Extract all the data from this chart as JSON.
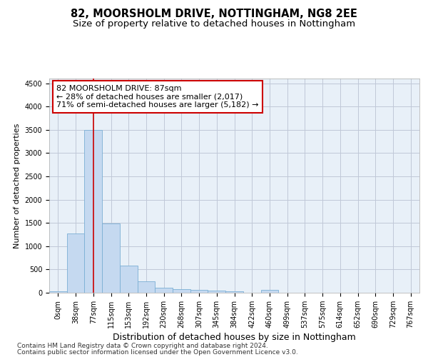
{
  "title": "82, MOORSHOLM DRIVE, NOTTINGHAM, NG8 2EE",
  "subtitle": "Size of property relative to detached houses in Nottingham",
  "xlabel": "Distribution of detached houses by size in Nottingham",
  "ylabel": "Number of detached properties",
  "bin_labels": [
    "0sqm",
    "38sqm",
    "77sqm",
    "115sqm",
    "153sqm",
    "192sqm",
    "230sqm",
    "268sqm",
    "307sqm",
    "345sqm",
    "384sqm",
    "422sqm",
    "460sqm",
    "499sqm",
    "537sqm",
    "575sqm",
    "614sqm",
    "652sqm",
    "690sqm",
    "729sqm",
    "767sqm"
  ],
  "bar_values": [
    35,
    1280,
    3500,
    1480,
    580,
    240,
    115,
    80,
    55,
    40,
    35,
    0,
    55,
    0,
    0,
    0,
    0,
    0,
    0,
    0,
    0
  ],
  "bar_color": "#c5d9f0",
  "bar_edge_color": "#7bafd4",
  "property_line_x": 2,
  "property_line_color": "#cc0000",
  "annotation_text": "82 MOORSHOLM DRIVE: 87sqm\n← 28% of detached houses are smaller (2,017)\n71% of semi-detached houses are larger (5,182) →",
  "annotation_box_color": "#ffffff",
  "annotation_box_edge_color": "#cc0000",
  "ylim": [
    0,
    4600
  ],
  "yticks": [
    0,
    500,
    1000,
    1500,
    2000,
    2500,
    3000,
    3500,
    4000,
    4500
  ],
  "background_color": "#ffffff",
  "plot_bg_color": "#e8f0f8",
  "grid_color": "#c0c8d8",
  "footer_line1": "Contains HM Land Registry data © Crown copyright and database right 2024.",
  "footer_line2": "Contains public sector information licensed under the Open Government Licence v3.0.",
  "title_fontsize": 10.5,
  "subtitle_fontsize": 9.5,
  "xlabel_fontsize": 9,
  "ylabel_fontsize": 8,
  "tick_fontsize": 7,
  "footer_fontsize": 6.5,
  "ann_fontsize": 8
}
